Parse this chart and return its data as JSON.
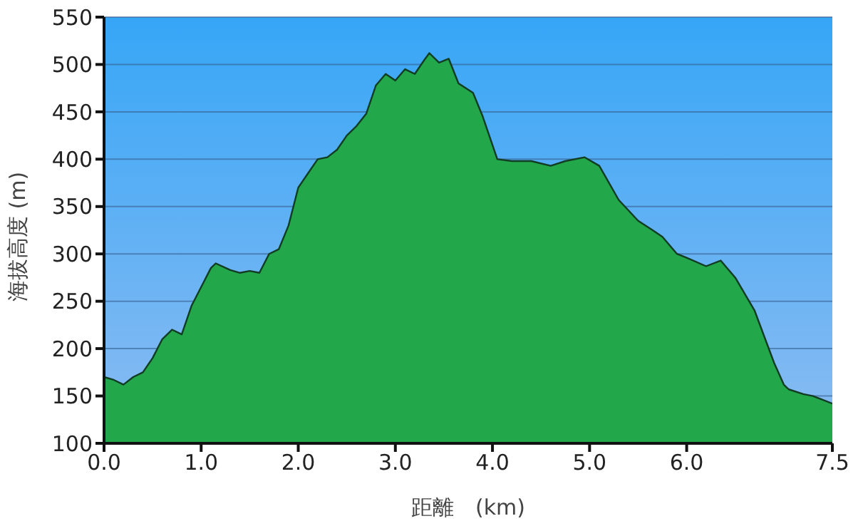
{
  "chart_data": {
    "type": "area",
    "xlabel": "距離　(km)",
    "ylabel": "海拔高度 (m)",
    "x": [
      0,
      0.1,
      0.2,
      0.3,
      0.4,
      0.5,
      0.6,
      0.7,
      0.8,
      0.9,
      1.0,
      1.1,
      1.15,
      1.3,
      1.4,
      1.5,
      1.6,
      1.7,
      1.8,
      1.9,
      2.0,
      2.1,
      2.2,
      2.3,
      2.4,
      2.5,
      2.6,
      2.7,
      2.8,
      2.9,
      3.0,
      3.1,
      3.2,
      3.3,
      3.35,
      3.45,
      3.55,
      3.65,
      3.8,
      3.9,
      4.05,
      4.2,
      4.4,
      4.6,
      4.75,
      4.95,
      5.1,
      5.3,
      5.5,
      5.65,
      5.75,
      5.9,
      6.0,
      6.2,
      6.35,
      6.5,
      6.7,
      6.9,
      7.0,
      7.05,
      7.2,
      7.3,
      7.4,
      7.5
    ],
    "series": [
      {
        "color": "#22a84a",
        "values": [
          170,
          167,
          162,
          170,
          175,
          190,
          210,
          220,
          215,
          245,
          265,
          285,
          290,
          283,
          280,
          282,
          280,
          300,
          305,
          330,
          370,
          385,
          400,
          402,
          410,
          425,
          435,
          448,
          478,
          490,
          483,
          495,
          490,
          505,
          512,
          502,
          506,
          480,
          470,
          445,
          400,
          398,
          398,
          393,
          398,
          402,
          393,
          357,
          335,
          325,
          318,
          300,
          296,
          287,
          293,
          275,
          240,
          185,
          162,
          157,
          152,
          150,
          146,
          142
        ]
      }
    ],
    "xlim": [
      0,
      7.5
    ],
    "xticks": [
      {
        "value": 0,
        "label": "0.0"
      },
      {
        "value": 1,
        "label": "1.0"
      },
      {
        "value": 2,
        "label": "2.0"
      },
      {
        "value": 3,
        "label": "3.0"
      },
      {
        "value": 4,
        "label": "4.0"
      },
      {
        "value": 5,
        "label": "5.0"
      },
      {
        "value": 6,
        "label": "6.0"
      },
      {
        "value": 7.5,
        "label": "7.5"
      }
    ],
    "ylim": [
      100,
      550
    ],
    "yticks": [
      100,
      150,
      200,
      250,
      300,
      350,
      400,
      450,
      500,
      550
    ],
    "grid": "y",
    "legend": false
  }
}
